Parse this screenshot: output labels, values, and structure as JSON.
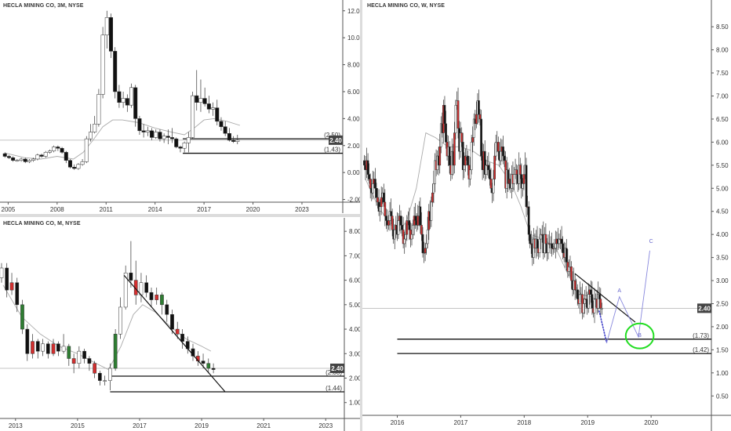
{
  "chart_data": [
    {
      "type": "candlestick",
      "title": "HECLA MINING CO, 3M, NYSE",
      "x_ticks": [
        "2005",
        "2008",
        "2011",
        "2014",
        "2017",
        "2020",
        "2023"
      ],
      "y_ticks": [
        "12.00",
        "10.00",
        "8.00",
        "6.00",
        "4.00",
        "2.00",
        "0.00",
        "-2.00"
      ],
      "ylim": [
        -2.2,
        12.8
      ],
      "xlim": [
        2004.5,
        2025.5
      ],
      "last_price": 2.4,
      "last_price_label": "2.40",
      "levels": [
        {
          "label": "(2.50)",
          "value": 2.5,
          "x_from": 2015.7
        },
        {
          "label": "(1.43)",
          "value": 1.43,
          "x_from": 2015.7
        }
      ],
      "moving_average": [
        [
          2004.8,
          1.45
        ],
        [
          2006,
          1.1
        ],
        [
          2007,
          1.0
        ],
        [
          2008,
          1.2
        ],
        [
          2009,
          1.0
        ],
        [
          2009.6,
          1.5
        ],
        [
          2010.2,
          2.4
        ],
        [
          2010.8,
          3.4
        ],
        [
          2011.4,
          3.9
        ],
        [
          2012,
          3.9
        ],
        [
          2013,
          3.7
        ],
        [
          2014,
          3.3
        ],
        [
          2015,
          3.0
        ],
        [
          2015.8,
          2.8
        ],
        [
          2016.4,
          3.3
        ],
        [
          2017,
          3.9
        ],
        [
          2017.6,
          4.0
        ],
        [
          2018.4,
          3.8
        ],
        [
          2019.2,
          3.5
        ]
      ],
      "candles": [
        [
          2004.8,
          1.4,
          1.2,
          1.5,
          1.1
        ],
        [
          2005.05,
          1.2,
          1.1,
          1.3,
          1.0
        ],
        [
          2005.3,
          1.1,
          0.9,
          1.2,
          0.8
        ],
        [
          2005.55,
          0.9,
          0.9,
          1.0,
          0.8
        ],
        [
          2005.8,
          0.9,
          1.0,
          1.1,
          0.8
        ],
        [
          2006.05,
          1.0,
          0.8,
          1.1,
          0.7
        ],
        [
          2006.3,
          0.8,
          0.9,
          1.0,
          0.7
        ],
        [
          2006.55,
          0.9,
          1.0,
          1.1,
          0.8
        ],
        [
          2006.8,
          1.0,
          1.3,
          1.4,
          0.9
        ],
        [
          2007.05,
          1.3,
          1.2,
          1.4,
          1.1
        ],
        [
          2007.3,
          1.2,
          1.5,
          1.6,
          1.1
        ],
        [
          2007.55,
          1.5,
          1.6,
          1.7,
          1.4
        ],
        [
          2007.8,
          1.6,
          1.9,
          2.0,
          1.5
        ],
        [
          2008.05,
          1.9,
          1.8,
          2.0,
          1.6
        ],
        [
          2008.3,
          1.8,
          1.5,
          1.9,
          1.4
        ],
        [
          2008.55,
          1.5,
          0.9,
          1.6,
          0.7
        ],
        [
          2008.8,
          0.9,
          0.4,
          1.0,
          0.3
        ],
        [
          2009.05,
          0.4,
          0.3,
          0.6,
          0.2
        ],
        [
          2009.3,
          0.3,
          0.6,
          0.7,
          0.2
        ],
        [
          2009.55,
          0.6,
          0.8,
          1.0,
          0.5
        ],
        [
          2009.8,
          0.8,
          2.5,
          2.7,
          0.7
        ],
        [
          2010.05,
          2.5,
          3.0,
          3.6,
          2.3
        ],
        [
          2010.3,
          3.0,
          3.6,
          4.2,
          2.9
        ],
        [
          2010.55,
          3.6,
          5.8,
          6.2,
          3.4
        ],
        [
          2010.8,
          5.8,
          10.2,
          10.8,
          5.5
        ],
        [
          2011.05,
          10.2,
          11.5,
          12.0,
          9.2
        ],
        [
          2011.3,
          11.5,
          9.0,
          11.8,
          8.5
        ],
        [
          2011.55,
          9.0,
          6.0,
          9.3,
          5.5
        ],
        [
          2011.8,
          6.0,
          5.2,
          6.5,
          4.8
        ],
        [
          2012.05,
          5.2,
          5.5,
          6.0,
          4.8
        ],
        [
          2012.3,
          5.5,
          5.0,
          5.8,
          4.5
        ],
        [
          2012.55,
          5.0,
          6.3,
          6.6,
          4.8
        ],
        [
          2012.8,
          6.3,
          4.0,
          6.5,
          3.4
        ],
        [
          2013.05,
          4.0,
          3.1,
          4.2,
          2.8
        ],
        [
          2013.3,
          3.1,
          3.0,
          3.6,
          2.6
        ],
        [
          2013.55,
          3.0,
          3.1,
          3.4,
          2.7
        ],
        [
          2013.8,
          3.1,
          2.6,
          3.3,
          2.4
        ],
        [
          2014.05,
          2.6,
          3.0,
          3.2,
          2.5
        ],
        [
          2014.3,
          3.0,
          2.5,
          3.2,
          2.3
        ],
        [
          2014.55,
          2.5,
          2.7,
          2.9,
          2.2
        ],
        [
          2014.8,
          2.7,
          2.6,
          3.2,
          2.1
        ],
        [
          2015.05,
          2.6,
          2.5,
          3.3,
          2.2
        ],
        [
          2015.3,
          2.5,
          1.9,
          2.6,
          1.8
        ],
        [
          2015.55,
          1.9,
          1.8,
          2.0,
          1.5
        ],
        [
          2015.8,
          1.8,
          2.2,
          2.3,
          1.5
        ],
        [
          2016.05,
          2.2,
          2.6,
          3.0,
          1.5
        ],
        [
          2016.3,
          2.6,
          5.7,
          6.0,
          2.5
        ],
        [
          2016.55,
          5.7,
          5.2,
          7.6,
          4.6
        ],
        [
          2016.8,
          5.2,
          5.5,
          6.9,
          4.5
        ],
        [
          2017.05,
          5.5,
          5.1,
          6.3,
          4.9
        ],
        [
          2017.3,
          5.1,
          4.7,
          5.7,
          4.4
        ],
        [
          2017.55,
          4.7,
          4.8,
          5.2,
          4.2
        ],
        [
          2017.8,
          4.8,
          3.8,
          5.4,
          3.5
        ],
        [
          2018.05,
          3.8,
          3.4,
          4.1,
          3.1
        ],
        [
          2018.3,
          3.4,
          2.9,
          3.8,
          2.7
        ],
        [
          2018.55,
          2.9,
          2.4,
          3.3,
          2.3
        ],
        [
          2018.8,
          2.4,
          2.3,
          2.7,
          2.2
        ],
        [
          2019.05,
          2.3,
          2.4,
          2.8,
          2.1
        ]
      ]
    },
    {
      "type": "candlestick",
      "title": "HECLA MINING CO, M, NYSE",
      "x_ticks": [
        "2013",
        "2015",
        "2017",
        "2019",
        "2021",
        "2023"
      ],
      "y_ticks": [
        "8.00",
        "7.00",
        "6.00",
        "5.00",
        "4.00",
        "3.00",
        "2.00",
        "1.00"
      ],
      "ylim": [
        0.35,
        8.55
      ],
      "xlim": [
        2012.5,
        2023.6
      ],
      "last_price": 2.4,
      "last_price_label": "2.40",
      "levels": [
        {
          "label": "(2.08)",
          "value": 2.08,
          "x_from": 2016.05
        },
        {
          "label": "(1.44)",
          "value": 1.44,
          "x_from": 2016.05
        }
      ],
      "trendline": [
        [
          2016.5,
          6.2
        ],
        [
          2019.75,
          1.45
        ]
      ],
      "moving_average": [
        [
          2012.6,
          5.8
        ],
        [
          2013.2,
          4.5
        ],
        [
          2013.8,
          3.8
        ],
        [
          2014.4,
          3.3
        ],
        [
          2015.0,
          3.0
        ],
        [
          2015.6,
          2.6
        ],
        [
          2016.0,
          2.35
        ],
        [
          2016.4,
          3.3
        ],
        [
          2016.8,
          4.6
        ],
        [
          2017.1,
          5.0
        ],
        [
          2017.5,
          4.7
        ],
        [
          2018.0,
          4.1
        ],
        [
          2018.5,
          3.6
        ],
        [
          2019.0,
          3.3
        ],
        [
          2019.3,
          3.1
        ]
      ],
      "candles": [
        [
          2012.55,
          6.1,
          6.5,
          6.7,
          5.9
        ],
        [
          2012.72,
          6.5,
          5.6,
          6.7,
          5.3
        ],
        [
          2012.88,
          5.6,
          5.9,
          6.3,
          5.4
        ],
        [
          2013.05,
          5.9,
          5.0,
          6.1,
          4.7
        ],
        [
          2013.22,
          5.0,
          4.0,
          5.2,
          3.8
        ],
        [
          2013.38,
          4.0,
          3.0,
          4.2,
          2.7
        ],
        [
          2013.55,
          3.0,
          3.5,
          3.8,
          2.8
        ],
        [
          2013.72,
          3.5,
          3.1,
          3.6,
          2.8
        ],
        [
          2013.88,
          3.1,
          3.4,
          3.6,
          2.9
        ],
        [
          2014.05,
          3.4,
          3.0,
          3.5,
          2.8
        ],
        [
          2014.22,
          3.0,
          3.4,
          3.6,
          2.9
        ],
        [
          2014.38,
          3.4,
          3.1,
          3.5,
          2.9
        ],
        [
          2014.55,
          3.1,
          3.3,
          3.8,
          3.0
        ],
        [
          2014.72,
          3.3,
          2.8,
          3.4,
          2.5
        ],
        [
          2014.88,
          2.8,
          2.6,
          3.0,
          2.2
        ],
        [
          2015.05,
          2.6,
          3.1,
          3.3,
          2.4
        ],
        [
          2015.22,
          3.1,
          2.8,
          3.2,
          2.6
        ],
        [
          2015.38,
          2.8,
          2.6,
          2.9,
          2.3
        ],
        [
          2015.55,
          2.6,
          2.2,
          2.7,
          2.0
        ],
        [
          2015.72,
          2.2,
          1.9,
          2.3,
          1.7
        ],
        [
          2015.88,
          1.9,
          1.9,
          2.1,
          1.7
        ],
        [
          2016.05,
          1.9,
          2.4,
          2.6,
          1.5
        ],
        [
          2016.22,
          2.4,
          3.8,
          4.0,
          2.3
        ],
        [
          2016.38,
          3.8,
          4.9,
          5.3,
          3.6
        ],
        [
          2016.55,
          4.9,
          6.3,
          6.6,
          4.8
        ],
        [
          2016.72,
          6.3,
          6.0,
          7.6,
          5.7
        ],
        [
          2016.88,
          6.0,
          5.4,
          6.8,
          5.0
        ],
        [
          2017.05,
          5.4,
          5.9,
          6.3,
          5.1
        ],
        [
          2017.22,
          5.9,
          5.5,
          6.2,
          5.3
        ],
        [
          2017.38,
          5.5,
          5.2,
          5.7,
          4.9
        ],
        [
          2017.55,
          5.2,
          5.4,
          5.7,
          5.0
        ],
        [
          2017.72,
          5.4,
          5.0,
          5.5,
          4.6
        ],
        [
          2017.88,
          5.0,
          4.6,
          5.2,
          4.3
        ],
        [
          2018.05,
          4.6,
          4.0,
          4.8,
          3.8
        ],
        [
          2018.22,
          4.0,
          3.8,
          4.3,
          3.6
        ],
        [
          2018.38,
          3.8,
          3.5,
          4.0,
          3.2
        ],
        [
          2018.55,
          3.5,
          3.2,
          3.7,
          3.0
        ],
        [
          2018.72,
          3.2,
          2.9,
          3.4,
          2.7
        ],
        [
          2018.88,
          2.9,
          2.7,
          3.1,
          2.5
        ],
        [
          2019.05,
          2.7,
          2.6,
          3.0,
          2.4
        ],
        [
          2019.22,
          2.6,
          2.4,
          2.8,
          2.2
        ],
        [
          2019.38,
          2.4,
          2.35,
          2.6,
          2.2
        ]
      ]
    },
    {
      "type": "candlestick",
      "title": "HECLA MINING CO, W, NYSE",
      "x_ticks": [
        "2016",
        "2017",
        "2018",
        "2019",
        "2020"
      ],
      "y_ticks": [
        "8.50",
        "8.00",
        "7.50",
        "7.00",
        "6.50",
        "6.00",
        "5.50",
        "5.00",
        "4.50",
        "4.00",
        "3.50",
        "3.00",
        "2.50",
        "2.00",
        "1.50",
        "1.00",
        "0.50"
      ],
      "ylim": [
        0.08,
        9.08
      ],
      "xlim": [
        2015.45,
        2020.95
      ],
      "last_price": 2.4,
      "last_price_label": "2.40",
      "levels": [
        {
          "label": "(1.73)",
          "value": 1.73,
          "x_from": 2016.0
        },
        {
          "label": "(1.42)",
          "value": 1.42,
          "x_from": 2016.0
        }
      ],
      "trendline": [
        [
          2018.8,
          3.15
        ],
        [
          2019.75,
          2.1
        ]
      ],
      "projection_path": [
        [
          2019.18,
          2.35
        ],
        [
          2019.3,
          1.65
        ],
        [
          2019.5,
          2.65
        ],
        [
          2019.8,
          1.78
        ],
        [
          2019.98,
          3.65
        ]
      ],
      "projection_labels": [
        {
          "text": "A",
          "x": 2019.5,
          "y": 2.75
        },
        {
          "text": "B",
          "x": 2019.82,
          "y": 1.78
        },
        {
          "text": "C",
          "x": 2020.0,
          "y": 3.82
        }
      ],
      "target_zone": {
        "x_center": 2019.82,
        "y_center": 1.8,
        "x_radius": 0.22,
        "y_radius": 0.27
      },
      "moving_average": [
        [
          2015.5,
          5.2
        ],
        [
          2015.7,
          4.6
        ],
        [
          2015.85,
          4.3
        ],
        [
          2016.0,
          4.0
        ],
        [
          2016.15,
          4.3
        ],
        [
          2016.3,
          5.0
        ],
        [
          2016.45,
          6.2
        ],
        [
          2016.6,
          6.1
        ],
        [
          2016.8,
          5.9
        ],
        [
          2017.0,
          5.9
        ],
        [
          2017.2,
          5.8
        ],
        [
          2017.4,
          5.6
        ],
        [
          2017.6,
          5.5
        ],
        [
          2017.8,
          5.1
        ],
        [
          2017.95,
          4.6
        ],
        [
          2018.1,
          4.0
        ],
        [
          2018.3,
          3.9
        ],
        [
          2018.5,
          3.7
        ],
        [
          2018.7,
          3.1
        ],
        [
          2018.9,
          2.7
        ],
        [
          2019.05,
          2.65
        ],
        [
          2019.2,
          2.55
        ]
      ],
      "candle_series": {
        "start": 2015.48,
        "step": 0.0192,
        "close": [
          5.5,
          5.4,
          5.6,
          5.3,
          5.2,
          5.0,
          4.9,
          5.1,
          5.2,
          5.0,
          4.8,
          4.7,
          4.5,
          4.6,
          4.8,
          4.9,
          4.7,
          4.4,
          4.3,
          4.2,
          4.3,
          4.5,
          4.4,
          4.1,
          3.9,
          4.1,
          4.2,
          4.0,
          4.3,
          4.4,
          4.2,
          4.1,
          3.8,
          3.9,
          4.0,
          4.3,
          4.3,
          4.1,
          3.9,
          4.0,
          4.2,
          4.4,
          4.3,
          4.2,
          4.4,
          4.6,
          4.2,
          4.0,
          3.6,
          3.6,
          3.7,
          3.8,
          4.1,
          4.5,
          4.3,
          4.7,
          4.9,
          5.1,
          5.6,
          5.4,
          5.7,
          5.5,
          5.9,
          6.4,
          6.2,
          6.8,
          6.4,
          6.0,
          5.7,
          5.9,
          5.5,
          5.3,
          5.8,
          5.5,
          6.2,
          6.8,
          6.9,
          6.3,
          5.8,
          6.2,
          6.0,
          5.4,
          5.5,
          5.7,
          5.7,
          5.5,
          5.2,
          5.4,
          6.0,
          6.1,
          6.5,
          6.4,
          6.6,
          6.9,
          6.6,
          6.5,
          5.7,
          5.4,
          5.8,
          5.3,
          5.5,
          5.5,
          5.4,
          5.2,
          5.0,
          4.9,
          5.2,
          5.7,
          6.0,
          6.0,
          5.8,
          5.6,
          5.8,
          5.9,
          5.7,
          5.6,
          5.0,
          5.4,
          5.1,
          5.2,
          5.0,
          5.3,
          5.1,
          5.3,
          5.4,
          5.3,
          5.1,
          5.5,
          5.3,
          5.0,
          5.1,
          5.3,
          5.5,
          4.6,
          4.6,
          4.0,
          3.8,
          3.8,
          3.5,
          3.9,
          3.7,
          3.9,
          3.7,
          3.6,
          3.9,
          4.0,
          4.0,
          3.6,
          4.0,
          3.8,
          3.6,
          3.8,
          3.8,
          3.8,
          3.7,
          3.7,
          3.7,
          3.8,
          3.9,
          3.8,
          3.9,
          3.9,
          3.8,
          3.6,
          3.5,
          3.7,
          3.4,
          3.2,
          3.3,
          3.3,
          3.0,
          2.8,
          3.0,
          2.8,
          2.8,
          2.6,
          2.5,
          2.7,
          2.7,
          2.3,
          2.5,
          2.6,
          2.6,
          2.4,
          2.7,
          2.8,
          2.7,
          2.4,
          2.3,
          2.6,
          2.6,
          2.4,
          2.7,
          2.6,
          2.4,
          2.4
        ]
      }
    }
  ]
}
